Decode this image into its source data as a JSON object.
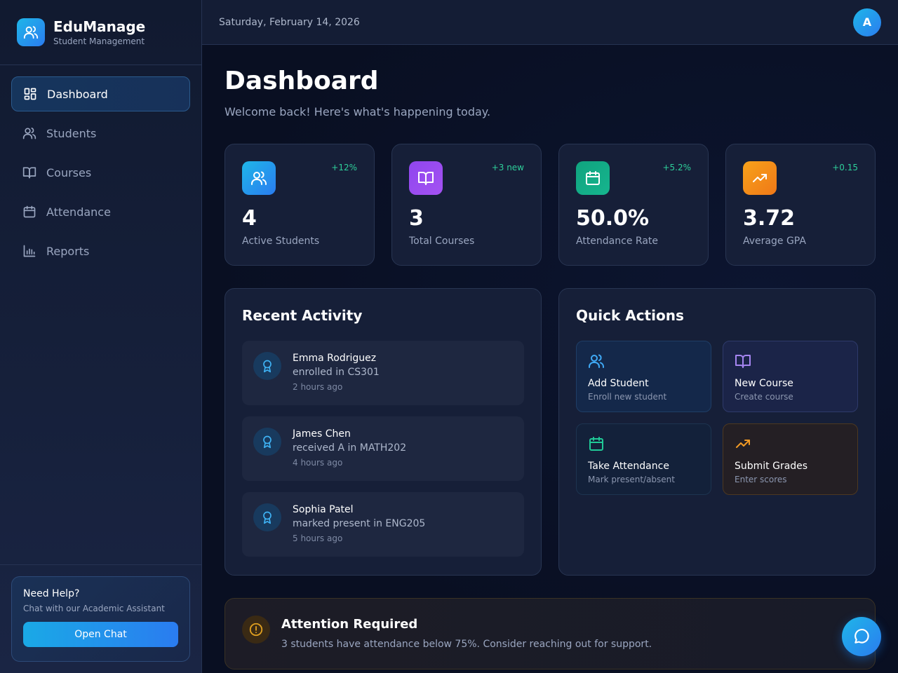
{
  "brand": {
    "name": "EduManage",
    "subtitle": "Student Management",
    "icon": "users-icon"
  },
  "sidebar": {
    "items": [
      {
        "label": "Dashboard",
        "icon": "dashboard-icon",
        "active": true
      },
      {
        "label": "Students",
        "icon": "users-icon",
        "active": false
      },
      {
        "label": "Courses",
        "icon": "book-icon",
        "active": false
      },
      {
        "label": "Attendance",
        "icon": "calendar-icon",
        "active": false
      },
      {
        "label": "Reports",
        "icon": "bar-chart-icon",
        "active": false
      }
    ],
    "help": {
      "title": "Need Help?",
      "subtitle": "Chat with our Academic Assistant",
      "button_label": "Open Chat"
    }
  },
  "header": {
    "date": "Saturday, February 14, 2026",
    "avatar_initial": "A"
  },
  "main": {
    "title": "Dashboard",
    "subtitle": "Welcome back! Here's what's happening today.",
    "stats": [
      {
        "value": "4",
        "label": "Active Students",
        "change": "+12%",
        "icon": "users-icon",
        "color": "#1a9be6"
      },
      {
        "value": "3",
        "label": "Total Courses",
        "change": "+3 new",
        "icon": "book-icon",
        "color": "#9b4ef0"
      },
      {
        "value": "50.0%",
        "label": "Attendance Rate",
        "change": "+5.2%",
        "icon": "calendar-icon",
        "color": "#12a886"
      },
      {
        "value": "3.72",
        "label": "Average GPA",
        "change": "+0.15",
        "icon": "trending-up-icon",
        "color": "#f28a18"
      }
    ],
    "recent_activity": {
      "title": "Recent Activity",
      "items": [
        {
          "name": "Emma Rodriguez",
          "action": "enrolled in CS301",
          "time": "2 hours ago",
          "icon": "award-icon"
        },
        {
          "name": "James Chen",
          "action": "received A in MATH202",
          "time": "4 hours ago",
          "icon": "award-icon"
        },
        {
          "name": "Sophia Patel",
          "action": "marked present in ENG205",
          "time": "5 hours ago",
          "icon": "award-icon"
        }
      ]
    },
    "quick_actions": {
      "title": "Quick Actions",
      "items": [
        {
          "title": "Add Student",
          "subtitle": "Enroll new student",
          "icon": "users-icon",
          "color": "#3fa9f5"
        },
        {
          "title": "New Course",
          "subtitle": "Create course",
          "icon": "book-icon",
          "color": "#a585f0"
        },
        {
          "title": "Take Attendance",
          "subtitle": "Mark present/absent",
          "icon": "calendar-icon",
          "color": "#20c997"
        },
        {
          "title": "Submit Grades",
          "subtitle": "Enter scores",
          "icon": "trending-up-icon",
          "color": "#f29a24"
        }
      ]
    },
    "alert": {
      "title": "Attention Required",
      "text": "3 students have attendance below 75%. Consider reaching out for support.",
      "icon": "alert-circle-icon",
      "color": "#e0a020"
    }
  },
  "chat_button": {
    "icon": "chat-bubble-icon"
  }
}
